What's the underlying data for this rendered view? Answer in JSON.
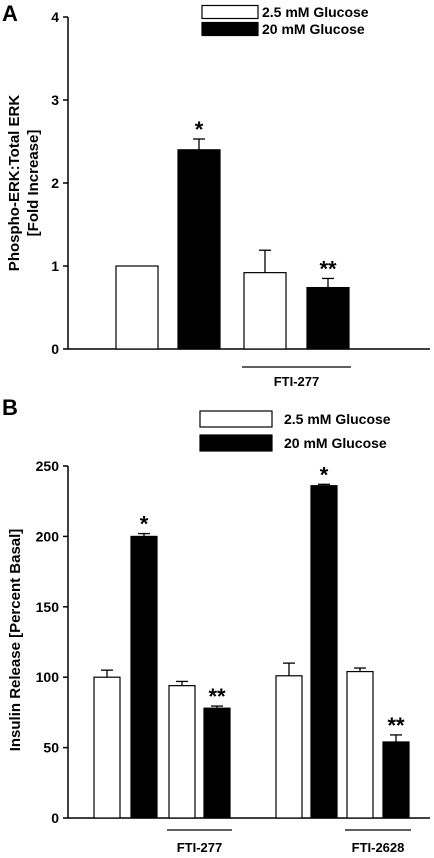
{
  "chart_data": [
    {
      "type": "bar",
      "panel_letter": "A",
      "ylabel": "Phospho-ERK:Total ERK",
      "ylabel2": "[Fold Increase]",
      "ylim": [
        0,
        4
      ],
      "yticks": [
        0,
        1,
        2,
        3,
        4
      ],
      "legend_position": "top-right",
      "series": [
        {
          "name": "2.5 mM Glucose",
          "color": "#ffffff"
        },
        {
          "name": "20 mM Glucose",
          "color": "#000000"
        }
      ],
      "bars": [
        {
          "series": 0,
          "value": 1.0,
          "error": 0.0,
          "sig": ""
        },
        {
          "series": 1,
          "value": 2.4,
          "error": 0.13,
          "sig": "*"
        },
        {
          "series": 0,
          "value": 0.92,
          "error": 0.27,
          "sig": ""
        },
        {
          "series": 1,
          "value": 0.74,
          "error": 0.11,
          "sig": "**"
        }
      ],
      "group_labels": [
        {
          "text": "FTI-277",
          "bars": [
            2,
            3
          ]
        }
      ]
    },
    {
      "type": "bar",
      "panel_letter": "B",
      "ylabel": "Insulin Release [Percent Basal]",
      "ylim": [
        0,
        250
      ],
      "yticks": [
        0,
        50,
        100,
        150,
        200,
        250
      ],
      "legend_position": "top-right",
      "series": [
        {
          "name": "2.5 mM Glucose",
          "color": "#ffffff"
        },
        {
          "name": "20 mM Glucose",
          "color": "#000000"
        }
      ],
      "bars": [
        {
          "series": 0,
          "value": 100,
          "error": 5,
          "sig": ""
        },
        {
          "series": 1,
          "value": 200,
          "error": 2,
          "sig": "*"
        },
        {
          "series": 0,
          "value": 94,
          "error": 3,
          "sig": ""
        },
        {
          "series": 1,
          "value": 78,
          "error": 1.5,
          "sig": "**"
        },
        {
          "series": 0,
          "value": 101,
          "error": 9,
          "sig": ""
        },
        {
          "series": 1,
          "value": 236,
          "error": 1,
          "sig": "*"
        },
        {
          "series": 0,
          "value": 104,
          "error": 2.5,
          "sig": ""
        },
        {
          "series": 1,
          "value": 54,
          "error": 5,
          "sig": "**"
        }
      ],
      "group_labels": [
        {
          "text": "FTI-277",
          "bars": [
            2,
            3
          ]
        },
        {
          "text": "FTI-2628",
          "bars": [
            6,
            7
          ]
        }
      ]
    }
  ]
}
